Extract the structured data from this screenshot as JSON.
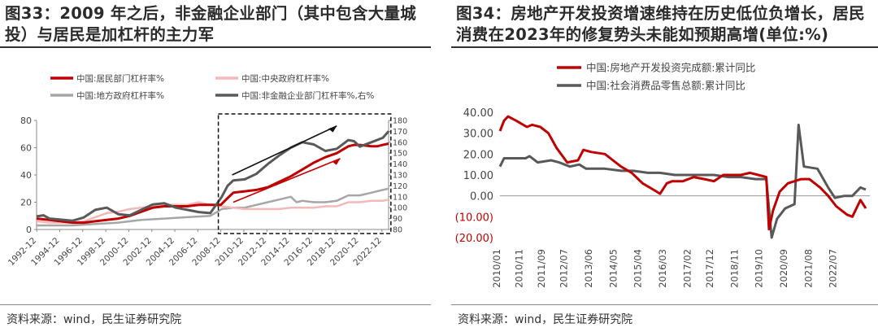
{
  "panels": [
    {
      "title": "图33：2009 年之后，非金融企业部门（其中包含大量城投）与居民是加杠杆的主力军",
      "source": "资料来源：wind，民生证券研究院"
    },
    {
      "title": "图34：房地产开发投资增速维持在历史低位负增长，居民消费在2023年的修复势头未能如预期高增(单位:%)",
      "source": "资料来源：wind，民生证券研究院"
    }
  ],
  "chart_data": [
    {
      "type": "line",
      "title": "",
      "x_labels": [
        "1992-12",
        "1994-12",
        "1996-12",
        "1998-12",
        "2000-12",
        "2002-12",
        "2004-12",
        "2006-12",
        "2008-12",
        "2010-12",
        "2012-12",
        "2014-12",
        "2016-12",
        "2018-12",
        "2020-12",
        "2022-12"
      ],
      "x_range": [
        1992.9,
        2023.5
      ],
      "ylim": [
        0,
        80
      ],
      "y_ticks": [
        0,
        20,
        40,
        60,
        80
      ],
      "y2lim": [
        80,
        180
      ],
      "y2_ticks": [
        80,
        90,
        100,
        110,
        120,
        130,
        140,
        150,
        160,
        170,
        180
      ],
      "legend_position": "top",
      "annotations": [
        "dashed box 2009–2023",
        "black arrow up",
        "red arrow up"
      ],
      "colors": {
        "household": "#c00000",
        "central_gov": "#f4b8b8",
        "local_gov": "#a6a6a6",
        "nonfin": "#595959"
      },
      "series": [
        {
          "key": "household",
          "name": "中国:居民部门杠杆率%",
          "axis": "left",
          "x": [
            1992.9,
            1994,
            1995,
            1996,
            1997,
            1998,
            1999,
            2000,
            2001,
            2002,
            2003,
            2004,
            2005,
            2006,
            2007,
            2008,
            2008.9,
            2009.5,
            2010,
            2011,
            2012,
            2013,
            2014,
            2015,
            2016,
            2017,
            2018,
            2019,
            2020,
            2020.5,
            2021,
            2022,
            2022.5,
            2023,
            2023.5
          ],
          "y": [
            8,
            7,
            6,
            5,
            5,
            6,
            7,
            8,
            10,
            13,
            16,
            17,
            17,
            17,
            18,
            18,
            18,
            23,
            27,
            28,
            29,
            31,
            35,
            39,
            44,
            49,
            53,
            56,
            61,
            62,
            62,
            61,
            61,
            62,
            63
          ]
        },
        {
          "key": "central_gov",
          "name": "中国:中央政府杠杆率%",
          "axis": "left",
          "x": [
            1992.9,
            1994,
            1995,
            1996,
            1997,
            1998,
            1999,
            2000,
            2001,
            2002,
            2003,
            2004,
            2005,
            2006,
            2007,
            2008,
            2009,
            2010,
            2011,
            2012,
            2013,
            2014,
            2015,
            2016,
            2017,
            2018,
            2019,
            2020,
            2021,
            2022,
            2023,
            2023.5
          ],
          "y": [
            6,
            5,
            5,
            5,
            6,
            9,
            12,
            13,
            15,
            16,
            17,
            18,
            18,
            18,
            20,
            18,
            17,
            16,
            15,
            15,
            15,
            15,
            16,
            16,
            16,
            17,
            17,
            20,
            20,
            21,
            21,
            22
          ]
        },
        {
          "key": "local_gov",
          "name": "中国:地方政府杠杆率%",
          "axis": "left",
          "x": [
            1992.9,
            1994,
            1996,
            1998,
            2000,
            2002,
            2004,
            2006,
            2008,
            2009,
            2010,
            2011,
            2012,
            2013,
            2014,
            2015,
            2015.5,
            2016,
            2017,
            2018,
            2019,
            2020,
            2021,
            2022,
            2023,
            2023.5
          ],
          "y": [
            3,
            3,
            3,
            4,
            5,
            7,
            8,
            9,
            10,
            15,
            16,
            16,
            18,
            20,
            22,
            24,
            20,
            21,
            20,
            20,
            21,
            25,
            25,
            27,
            29,
            30
          ]
        },
        {
          "key": "nonfin",
          "name": "中国:非金融企业部门杠杆率%,右%",
          "axis": "right",
          "x": [
            1992.9,
            1993.5,
            1994,
            1995,
            1996,
            1997,
            1998,
            1999,
            2000,
            2001,
            2002,
            2003,
            2004,
            2005,
            2006,
            2007,
            2008,
            2009,
            2009.5,
            2010,
            2011,
            2012,
            2013,
            2014,
            2015,
            2016,
            2017,
            2018,
            2019,
            2020,
            2020.5,
            2021,
            2022,
            2023,
            2023.5
          ],
          "y": [
            92,
            93,
            90,
            89,
            88,
            91,
            98,
            100,
            94,
            93,
            98,
            103,
            104,
            100,
            98,
            96,
            95,
            110,
            120,
            125,
            126,
            131,
            140,
            148,
            155,
            160,
            158,
            152,
            154,
            162,
            161,
            156,
            160,
            164,
            170
          ]
        }
      ]
    },
    {
      "type": "line",
      "title": "",
      "x_labels": [
        "2010/01",
        "2010/11",
        "2011/09",
        "2012/07",
        "2013/06",
        "2014/05",
        "2015/04",
        "2016/03",
        "2017/02",
        "2017/12",
        "2018/11",
        "2019/10",
        "2020/09",
        "2021/08",
        "2022/07"
      ],
      "x_range": [
        2010.0,
        2023.75
      ],
      "ylim": [
        -20,
        40
      ],
      "y_ticks": [
        "40.00",
        "30.00",
        "20.00",
        "10.00",
        "0.00",
        "(10.00)",
        "(20.00)"
      ],
      "legend_position": "top-left",
      "colors": {
        "re_invest": "#c00000",
        "retail": "#595959"
      },
      "series": [
        {
          "key": "re_invest",
          "name": "中国:房地产开发投资完成额:累计同比",
          "x": [
            2010.0,
            2010.15,
            2010.3,
            2010.6,
            2011.0,
            2011.2,
            2011.5,
            2011.8,
            2012.1,
            2012.5,
            2012.9,
            2013.1,
            2013.4,
            2013.9,
            2014.2,
            2014.5,
            2014.9,
            2015.3,
            2015.7,
            2015.95,
            2016.2,
            2016.4,
            2016.8,
            2017.2,
            2017.6,
            2017.95,
            2018.3,
            2018.7,
            2018.95,
            2019.3,
            2019.6,
            2019.9,
            2020.0,
            2020.15,
            2020.4,
            2020.7,
            2020.95,
            2021.2,
            2021.5,
            2021.9,
            2022.2,
            2022.5,
            2022.9,
            2023.1,
            2023.4,
            2023.6
          ],
          "y": [
            31,
            36,
            38,
            36,
            33,
            34,
            33,
            30,
            23,
            16,
            17,
            22,
            21,
            20,
            17,
            14,
            11,
            6,
            3,
            1,
            6,
            7,
            7,
            9,
            8,
            7,
            10,
            10,
            10,
            11,
            10,
            9,
            -16,
            -7,
            2,
            6,
            7,
            8,
            8,
            4,
            0,
            -5,
            -9,
            -10,
            -2,
            -6
          ]
        },
        {
          "key": "retail",
          "name": "中国:社会消费品零售总额:累计同比",
          "x": [
            2010.0,
            2010.15,
            2010.5,
            2010.95,
            2011.1,
            2011.4,
            2011.9,
            2012.2,
            2012.4,
            2012.6,
            2012.95,
            2013.2,
            2013.9,
            2014.5,
            2014.95,
            2015.5,
            2015.95,
            2016.5,
            2016.95,
            2017.5,
            2017.95,
            2018.5,
            2018.95,
            2019.5,
            2019.9,
            2020.1,
            2020.3,
            2020.6,
            2020.95,
            2021.1,
            2021.3,
            2021.8,
            2022.2,
            2022.45,
            2022.8,
            2023.1,
            2023.4,
            2023.6
          ],
          "y": [
            14,
            18,
            18,
            18,
            19,
            16,
            17,
            16,
            15,
            14,
            15,
            13,
            13,
            12,
            12,
            11,
            11,
            10,
            10,
            10,
            10,
            9,
            9,
            8,
            8,
            -20,
            -11,
            -6,
            -4,
            34,
            14,
            13,
            4,
            -1,
            0,
            0,
            4,
            3
          ]
        }
      ]
    }
  ]
}
